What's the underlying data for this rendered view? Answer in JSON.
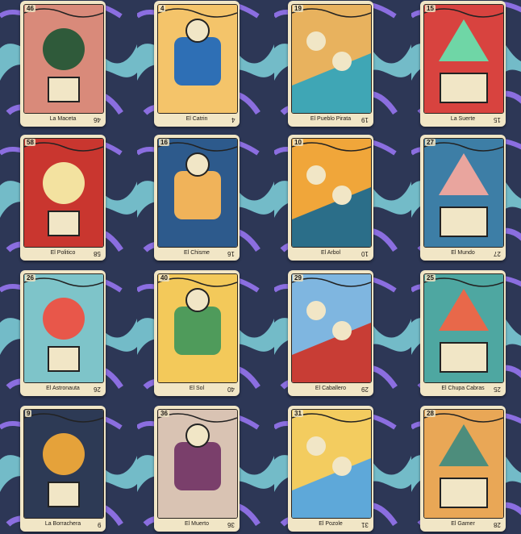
{
  "cards": [
    {
      "number": "46",
      "name": "La Maceta",
      "icon": "potted-plant",
      "bg": "#d98a7a",
      "accent": "#2f5a3a"
    },
    {
      "number": "4",
      "name": "El Catrin",
      "icon": "man-in-suit",
      "bg": "#f4c46a",
      "accent": "#2e6fb5"
    },
    {
      "number": "19",
      "name": "El Pueblo Pirata",
      "icon": "pirate-town",
      "bg": "#e8b25e",
      "accent": "#3fa6b5"
    },
    {
      "number": "15",
      "name": "La Suerte",
      "icon": "dice",
      "bg": "#d8433f",
      "accent": "#6fd6a6"
    },
    {
      "number": "58",
      "name": "El Politico",
      "icon": "politician-podium",
      "bg": "#c9362f",
      "accent": "#f3e2a0"
    },
    {
      "number": "16",
      "name": "El Chisme",
      "icon": "gossip-lips",
      "bg": "#2d5a8c",
      "accent": "#f0b35a"
    },
    {
      "number": "10",
      "name": "El Arbol",
      "icon": "tree",
      "bg": "#f0a63a",
      "accent": "#2b6e89"
    },
    {
      "number": "27",
      "name": "El Mundo",
      "icon": "world",
      "bg": "#3d7ea6",
      "accent": "#e9a59e"
    },
    {
      "number": "26",
      "name": "El Astronauta",
      "icon": "astronaut-rocket",
      "bg": "#7ec4c9",
      "accent": "#e8574a"
    },
    {
      "number": "40",
      "name": "El Sol",
      "icon": "smiling-sun",
      "bg": "#f3c95a",
      "accent": "#4f9b5b"
    },
    {
      "number": "29",
      "name": "El Caballero",
      "icon": "knight-horse",
      "bg": "#7fb6e0",
      "accent": "#c83d35"
    },
    {
      "number": "25",
      "name": "El Chupa Cabras",
      "icon": "chupacabras",
      "bg": "#4ea7a1",
      "accent": "#e8684a"
    },
    {
      "number": "9",
      "name": "La Borrachera",
      "icon": "drinks",
      "bg": "#2d3a55",
      "accent": "#e5a23a"
    },
    {
      "number": "36",
      "name": "El Muerto",
      "icon": "angel-skeleton",
      "bg": "#d9c3b3",
      "accent": "#7a3f6b"
    },
    {
      "number": "31",
      "name": "El Pozole",
      "icon": "pozole-woman",
      "bg": "#f3cc5f",
      "accent": "#5ea8d9"
    },
    {
      "number": "28",
      "name": "El Gamer",
      "icon": "gamer-room",
      "bg": "#e9a756",
      "accent": "#4d8d7c"
    }
  ]
}
